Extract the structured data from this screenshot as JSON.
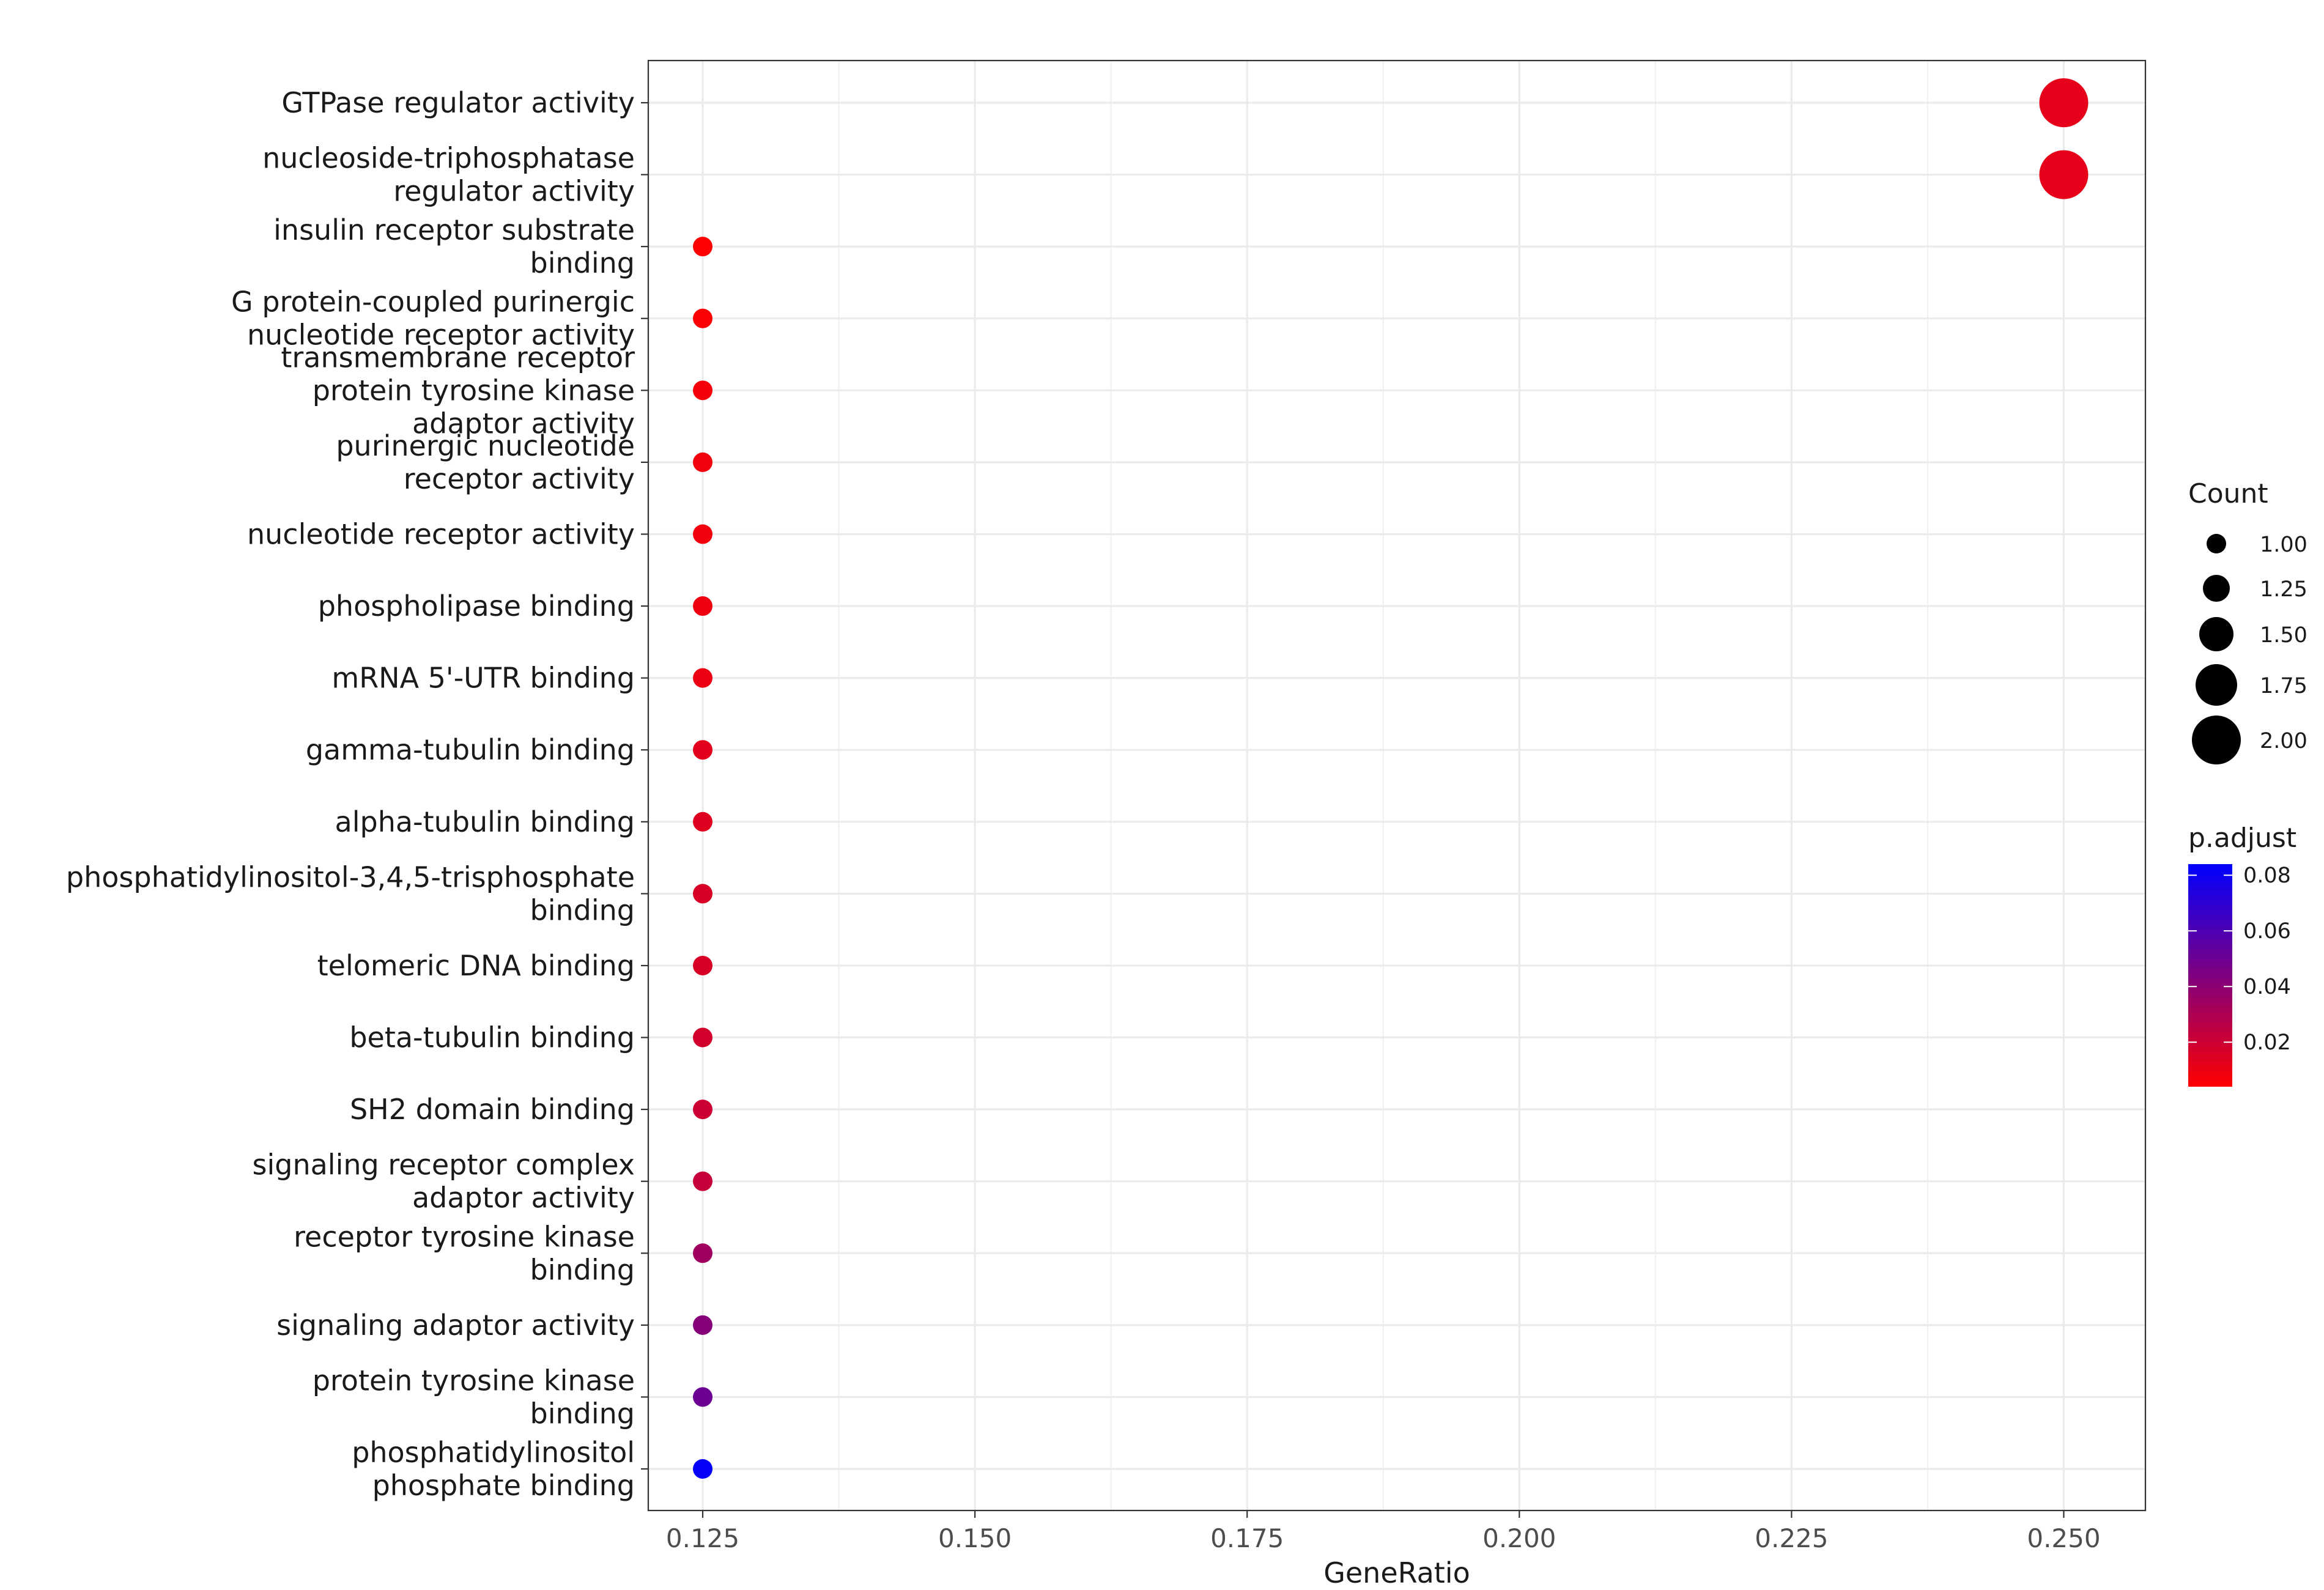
{
  "chart_data": {
    "type": "scatter",
    "title": "",
    "xlabel": "GeneRatio",
    "ylabel": "",
    "xlim": [
      0.12,
      0.2575
    ],
    "xticks": [
      "0.125",
      "0.150",
      "0.175",
      "0.200",
      "0.225",
      "0.250"
    ],
    "grid": true,
    "legend_position": "right",
    "categories": [
      "GTPase regulator activity",
      "nucleoside-triphosphatase\nregulator activity",
      "insulin receptor substrate\nbinding",
      "G protein-coupled purinergic\nnucleotide receptor activity",
      "transmembrane receptor\nprotein tyrosine kinase\nadaptor activity",
      "purinergic nucleotide\nreceptor activity",
      "nucleotide receptor activity",
      "phospholipase binding",
      "mRNA 5'-UTR binding",
      "gamma-tubulin binding",
      "alpha-tubulin binding",
      "phosphatidylinositol-3,4,5-trisphosphate\nbinding",
      "telomeric DNA binding",
      "beta-tubulin binding",
      "SH2 domain binding",
      "signaling receptor complex\nadaptor activity",
      "receptor tyrosine kinase\nbinding",
      "signaling adaptor activity",
      "protein tyrosine kinase\nbinding",
      "phosphatidylinositol\nphosphate binding"
    ],
    "points": [
      {
        "x": 0.25,
        "count": 2,
        "p_adjust": 0.012
      },
      {
        "x": 0.25,
        "count": 2,
        "p_adjust": 0.012
      },
      {
        "x": 0.125,
        "count": 1,
        "p_adjust": 0.004
      },
      {
        "x": 0.125,
        "count": 1,
        "p_adjust": 0.005
      },
      {
        "x": 0.125,
        "count": 1,
        "p_adjust": 0.007
      },
      {
        "x": 0.125,
        "count": 1,
        "p_adjust": 0.008
      },
      {
        "x": 0.125,
        "count": 1,
        "p_adjust": 0.008
      },
      {
        "x": 0.125,
        "count": 1,
        "p_adjust": 0.009
      },
      {
        "x": 0.125,
        "count": 1,
        "p_adjust": 0.01
      },
      {
        "x": 0.125,
        "count": 1,
        "p_adjust": 0.013
      },
      {
        "x": 0.125,
        "count": 1,
        "p_adjust": 0.014
      },
      {
        "x": 0.125,
        "count": 1,
        "p_adjust": 0.016
      },
      {
        "x": 0.125,
        "count": 1,
        "p_adjust": 0.016
      },
      {
        "x": 0.125,
        "count": 1,
        "p_adjust": 0.018
      },
      {
        "x": 0.125,
        "count": 1,
        "p_adjust": 0.02
      },
      {
        "x": 0.125,
        "count": 1,
        "p_adjust": 0.022
      },
      {
        "x": 0.125,
        "count": 1,
        "p_adjust": 0.034
      },
      {
        "x": 0.125,
        "count": 1,
        "p_adjust": 0.042
      },
      {
        "x": 0.125,
        "count": 1,
        "p_adjust": 0.05
      },
      {
        "x": 0.125,
        "count": 1,
        "p_adjust": 0.082
      }
    ],
    "size_legend": {
      "title": "Count",
      "values": [
        1.0,
        1.25,
        1.5,
        1.75,
        2.0
      ],
      "labels": [
        "1.00",
        "1.25",
        "1.50",
        "1.75",
        "2.00"
      ]
    },
    "color_legend": {
      "title": "p.adjust",
      "range": [
        0.004,
        0.084
      ],
      "ticks": [
        0.02,
        0.04,
        0.06,
        0.08
      ],
      "labels": [
        "0.02",
        "0.04",
        "0.06",
        "0.08"
      ],
      "low_color": "#ff0000",
      "high_color": "#0000ff"
    }
  }
}
